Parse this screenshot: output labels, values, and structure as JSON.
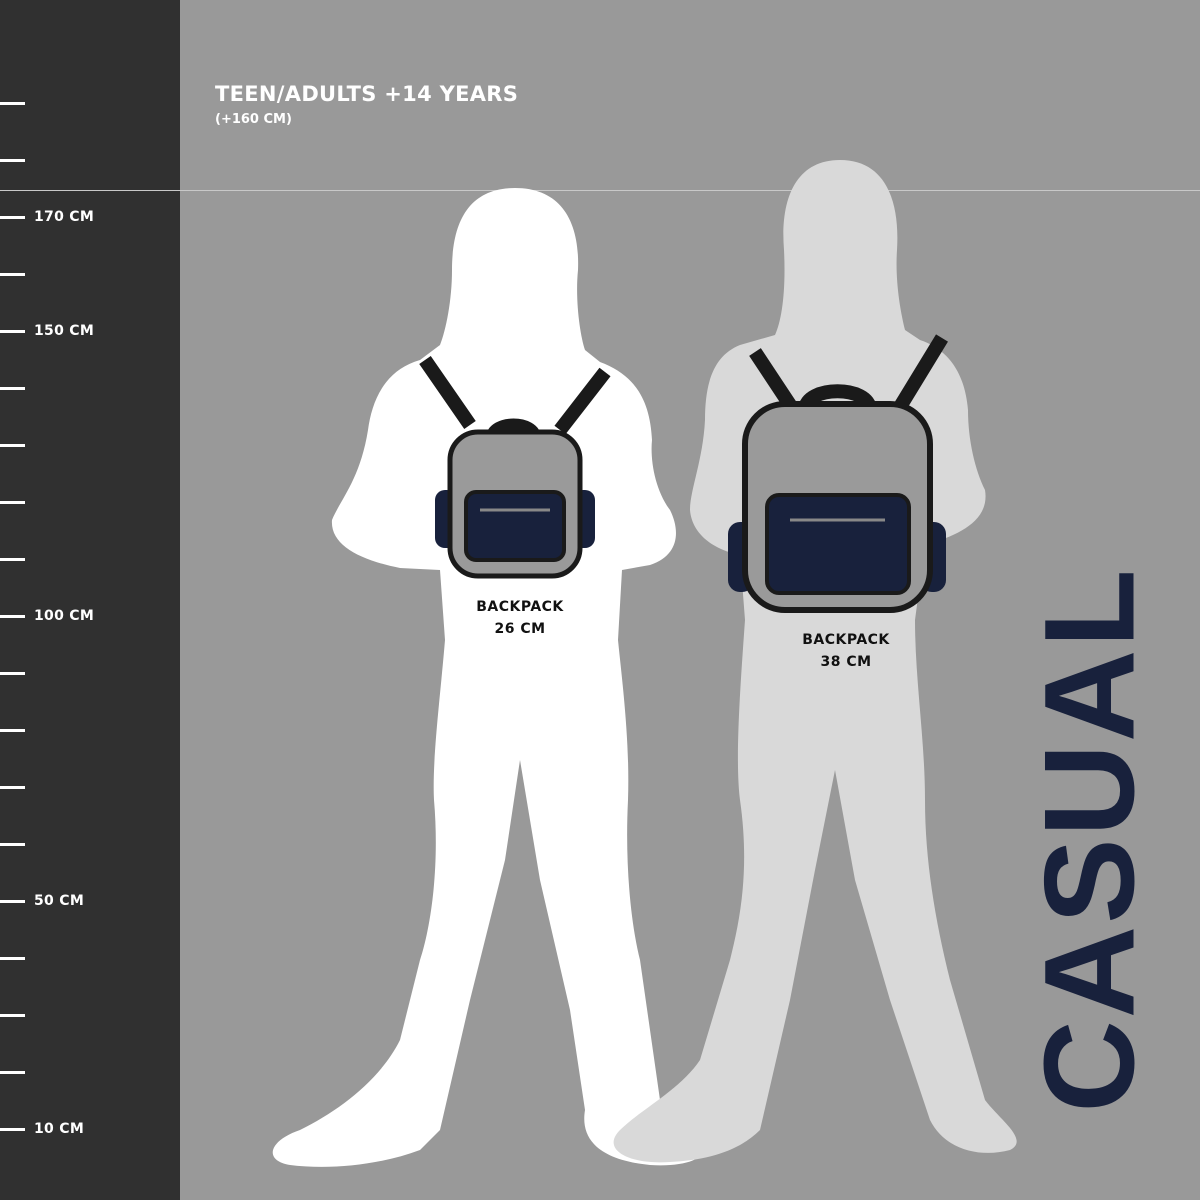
{
  "header": {
    "title": "TEEN/ADULTS +14 YEARS",
    "subtitle": "(+160 CM)"
  },
  "ruler": {
    "labels": [
      {
        "text": "170 CM",
        "value": 170
      },
      {
        "text": "150 CM",
        "value": 150
      },
      {
        "text": "100 CM",
        "value": 100
      },
      {
        "text": "50 CM",
        "value": 50
      },
      {
        "text": "10 CM",
        "value": 10
      }
    ]
  },
  "figures": [
    {
      "backpack_label": "BACKPACK",
      "size_label": "26 CM",
      "color": "#ffffff"
    },
    {
      "backpack_label": "BACKPACK",
      "size_label": "38 CM",
      "color": "#d9d9d9"
    }
  ],
  "brand_word": "CASUAL",
  "colors": {
    "ruler_bg": "#303030",
    "bg": "#999999",
    "navy": "#18213c",
    "backpack_grey": "#9a9a9a"
  }
}
